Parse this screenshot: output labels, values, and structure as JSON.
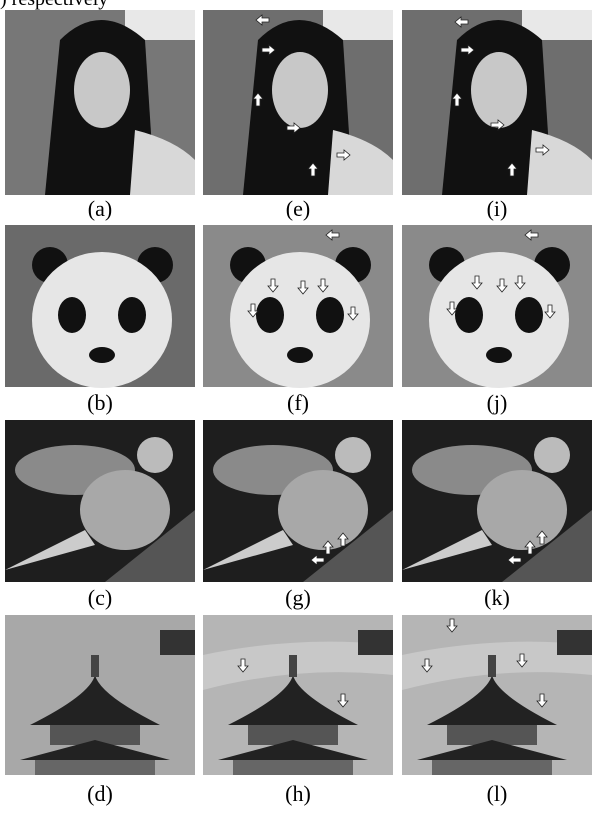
{
  "top_text": ") respectively",
  "captions": [
    [
      "(a)",
      "(e)",
      "(i)"
    ],
    [
      "(b)",
      "(f)",
      "(j)"
    ],
    [
      "(c)",
      "(g)",
      "(k)"
    ],
    [
      "(d)",
      "(h)",
      "(l)"
    ]
  ]
}
